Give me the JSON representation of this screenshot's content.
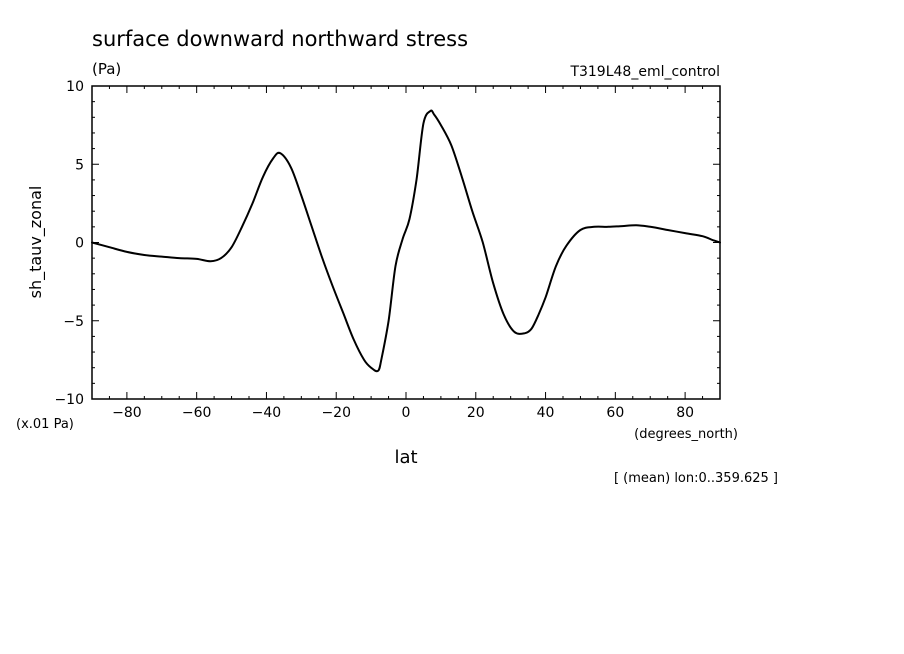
{
  "chart_data": {
    "type": "line",
    "title": "surface downward northward stress",
    "units": "(Pa)",
    "run_label": "T319L48_eml_control",
    "ylabel": "sh_tauv_zonal",
    "y_scale_note": "(x.01 Pa)",
    "xlabel": "lat",
    "x_units": "(degrees_north)",
    "footer": "[ (mean) lon:0..359.625 ]",
    "xlim": [
      -90,
      90
    ],
    "ylim": [
      -10,
      10
    ],
    "x_ticks": [
      -80,
      -60,
      -40,
      -20,
      0,
      20,
      40,
      60,
      80
    ],
    "x_tick_labels": [
      "−80",
      "−60",
      "−40",
      "−20",
      "0",
      "20",
      "40",
      "60",
      "80"
    ],
    "y_ticks": [
      10,
      5,
      0,
      -5,
      -10
    ],
    "y_tick_labels": [
      "10",
      "5",
      "0",
      "−5",
      "−10"
    ],
    "grid": false,
    "color": "#000000",
    "series": [
      {
        "x": [
          -90,
          -85,
          -80,
          -75,
          -70,
          -65,
          -60,
          -56,
          -53,
          -50,
          -47,
          -44,
          -41,
          -38,
          -36,
          -33,
          -30,
          -27,
          -24,
          -21,
          -18,
          -15,
          -12,
          -10,
          -8,
          -7,
          -5,
          -3,
          -1,
          1,
          3,
          5,
          7,
          8,
          10,
          13,
          16,
          19,
          22,
          25,
          28,
          31,
          34,
          36,
          38,
          40,
          43,
          46,
          50,
          54,
          58,
          62,
          66,
          70,
          75,
          80,
          85,
          88,
          90
        ],
        "y": [
          0.0,
          -0.3,
          -0.6,
          -0.8,
          -0.9,
          -1.0,
          -1.05,
          -1.2,
          -1.0,
          -0.3,
          1.0,
          2.5,
          4.2,
          5.4,
          5.7,
          4.8,
          3.0,
          1.0,
          -1.0,
          -2.8,
          -4.5,
          -6.2,
          -7.5,
          -8.0,
          -8.2,
          -7.4,
          -5.0,
          -1.5,
          0.2,
          1.5,
          4.0,
          7.6,
          8.4,
          8.2,
          7.5,
          6.2,
          4.2,
          2.0,
          0.0,
          -2.6,
          -4.6,
          -5.7,
          -5.8,
          -5.5,
          -4.6,
          -3.5,
          -1.5,
          -0.2,
          0.8,
          1.0,
          1.0,
          1.05,
          1.1,
          1.0,
          0.8,
          0.6,
          0.4,
          0.15,
          0.0
        ]
      }
    ]
  }
}
